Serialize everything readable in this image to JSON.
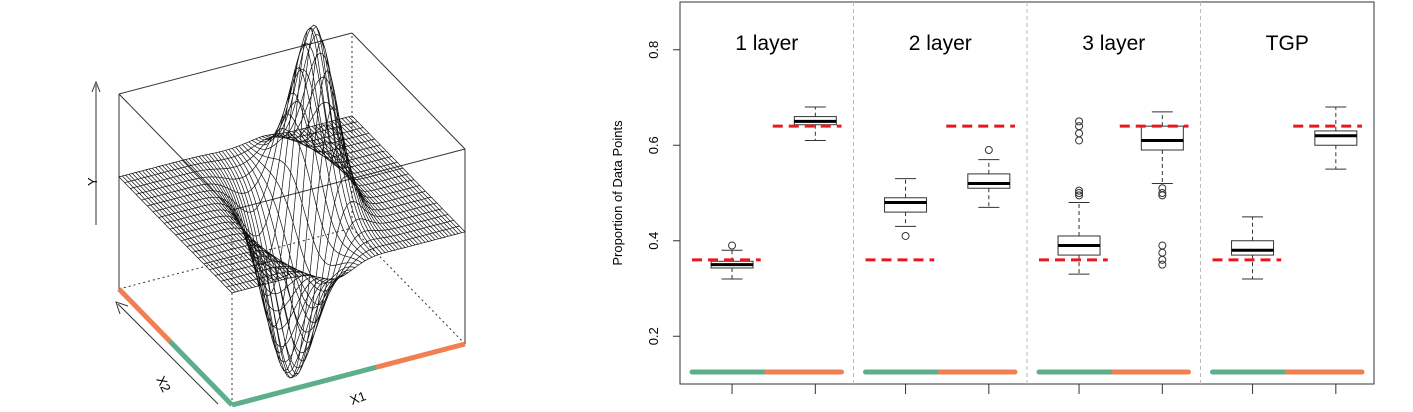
{
  "surface_plot": {
    "x_label": "X1",
    "y_label": "X2",
    "z_label": "Y",
    "edge_colors": {
      "left_segment": "#5dae8b",
      "right_segment": "#f08052"
    }
  },
  "chart_data": {
    "type": "boxplot",
    "ylabel": "Proportion of Data Points",
    "ylim": [
      0.1,
      0.9
    ],
    "yticks": [
      0.2,
      0.4,
      0.6,
      0.8
    ],
    "grid": false,
    "panels": [
      {
        "title": "1 layer",
        "true_left": 0.36,
        "true_right": 0.64,
        "boxes": [
          {
            "min": 0.32,
            "q1": 0.343,
            "median": 0.35,
            "q3": 0.357,
            "max": 0.38,
            "outliers": [
              0.39
            ]
          },
          {
            "min": 0.61,
            "q1": 0.643,
            "median": 0.65,
            "q3": 0.66,
            "max": 0.68,
            "outliers": []
          }
        ]
      },
      {
        "title": "2 layer",
        "true_left": 0.36,
        "true_right": 0.64,
        "boxes": [
          {
            "min": 0.43,
            "q1": 0.46,
            "median": 0.48,
            "q3": 0.49,
            "max": 0.53,
            "outliers": [
              0.41
            ]
          },
          {
            "min": 0.47,
            "q1": 0.51,
            "median": 0.52,
            "q3": 0.54,
            "max": 0.57,
            "outliers": [
              0.59
            ]
          }
        ]
      },
      {
        "title": "3 layer",
        "true_left": 0.36,
        "true_right": 0.64,
        "boxes": [
          {
            "min": 0.33,
            "q1": 0.37,
            "median": 0.39,
            "q3": 0.41,
            "max": 0.48,
            "outliers": [
              0.495,
              0.5,
              0.505,
              0.61,
              0.625,
              0.64,
              0.65
            ]
          },
          {
            "min": 0.52,
            "q1": 0.59,
            "median": 0.61,
            "q3": 0.64,
            "max": 0.67,
            "outliers": [
              0.35,
              0.36,
              0.375,
              0.39,
              0.495,
              0.5,
              0.51
            ]
          }
        ]
      },
      {
        "title": "TGP",
        "true_left": 0.36,
        "true_right": 0.64,
        "boxes": [
          {
            "min": 0.32,
            "q1": 0.37,
            "median": 0.38,
            "q3": 0.4,
            "max": 0.45,
            "outliers": []
          },
          {
            "min": 0.55,
            "q1": 0.6,
            "median": 0.62,
            "q3": 0.63,
            "max": 0.68,
            "outliers": []
          }
        ]
      }
    ],
    "colors": {
      "left_region": "#5dae8b",
      "right_region": "#f08052",
      "truth_line": "#e8191c",
      "divider": "#bbbbbb"
    }
  }
}
